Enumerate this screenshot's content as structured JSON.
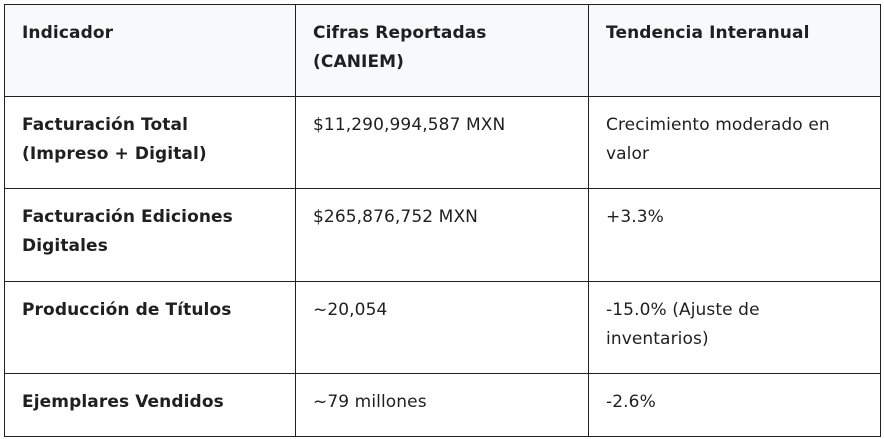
{
  "table": {
    "headers": [
      "Indicador",
      "Cifras Reportadas (CANIEM)",
      "Tendencia Interanual"
    ],
    "rows": [
      [
        "Facturación Total (Impreso + Digital)",
        "$11,290,994,587 MXN",
        "Crecimiento moderado en valor"
      ],
      [
        "Facturación Ediciones Digitales",
        "$265,876,752 MXN",
        "+3.3%"
      ],
      [
        "Producción de Títulos",
        "~20,054",
        "-15.0% (Ajuste de inventarios)"
      ],
      [
        "Ejemplares Vendidos",
        "~79 millones",
        "-2.6%"
      ]
    ]
  },
  "colors": {
    "header_bg": "#f8f9fa",
    "border": "#202020",
    "text": "#1f1f1f"
  }
}
